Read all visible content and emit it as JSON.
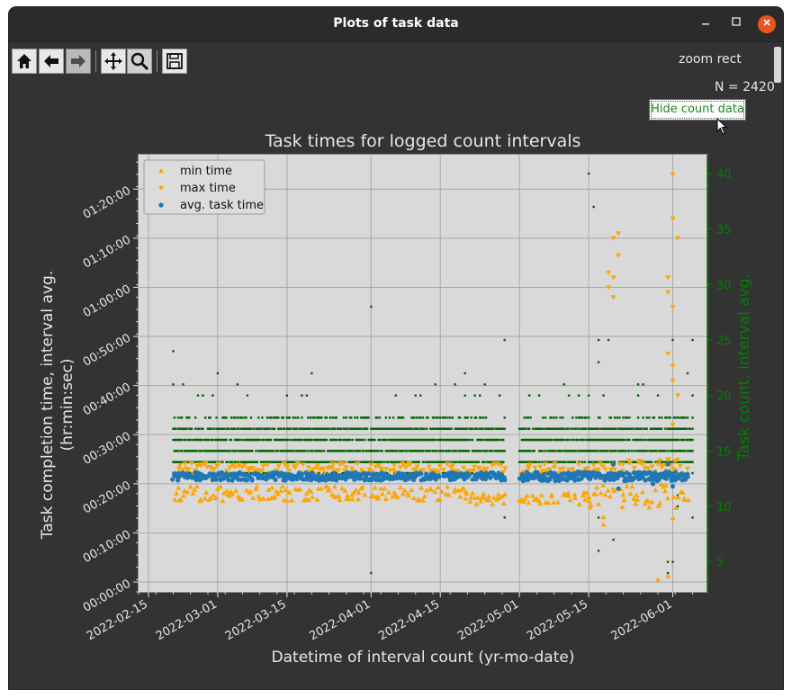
{
  "window": {
    "title": "Plots of task data"
  },
  "toolbar": {
    "mode_label": "zoom rect"
  },
  "info": {
    "count_label": "N = 2420"
  },
  "controls": {
    "hide_count_label": "Hide count data"
  },
  "colors": {
    "min": "#ffa500",
    "max": "#ffa500",
    "avg": "#1f77b4",
    "count": "#006400",
    "count_axis": "#008000",
    "axes_bg": "#d9d9d9",
    "fig_bg": "#333333"
  },
  "chart_data": {
    "type": "scatter",
    "title": "Task times for logged count intervals",
    "xlabel": "Datetime of interval count (yr-mo-date)",
    "ylabel": [
      "Task completion time, interval avg.",
      "(hr:min:sec)"
    ],
    "y2label": "Task count, interval avg.",
    "x_ticks": [
      "2022-02-15",
      "2022-03-01",
      "2022-03-15",
      "2022-04-01",
      "2022-04-15",
      "2022-05-01",
      "2022-05-15",
      "2022-06-01"
    ],
    "y_ticks": [
      "00:00:00",
      "00:10:00",
      "00:20:00",
      "00:30:00",
      "00:40:00",
      "00:50:00",
      "01:00:00",
      "01:10:00",
      "01:20:00"
    ],
    "y2_ticks": [
      "5",
      "10",
      "15",
      "20",
      "25",
      "30",
      "35",
      "40"
    ],
    "xlim": [
      "2022-02-13",
      "2022-06-08"
    ],
    "ylim_minutes": [
      -2,
      87
    ],
    "y2lim": [
      2.3,
      41.7
    ],
    "legend": {
      "placement": "upper-left",
      "entries": [
        "min time",
        "max time",
        "avg. task time"
      ]
    },
    "grid": true,
    "series": [
      {
        "name": "min time",
        "marker": "triangle-up",
        "bands": [
          {
            "from": "2022-02-20",
            "to": "2022-04-20",
            "center": 18,
            "spread": 1.5
          },
          {
            "from": "2022-04-20",
            "to": "2022-05-15",
            "center": 17,
            "spread": 1.2
          },
          {
            "from": "2022-05-15",
            "to": "2022-06-04",
            "center": 17.5,
            "spread": 2.5
          }
        ],
        "points": [
          [
            "2022-05-18",
            11.7
          ],
          [
            "2022-05-29",
            0.5
          ],
          [
            "2022-05-31",
            1.2
          ],
          [
            "2022-06-01",
            13
          ],
          [
            "2022-05-18",
            13.2
          ]
        ]
      },
      {
        "name": "max time",
        "marker": "triangle-down",
        "bands": [
          {
            "from": "2022-02-20",
            "to": "2022-05-22",
            "center": 23,
            "spread": 1.2
          },
          {
            "from": "2022-05-22",
            "to": "2022-06-04",
            "center": 23.5,
            "spread": 1.5
          }
        ],
        "points": [
          [
            "2022-05-19",
            63
          ],
          [
            "2022-05-19",
            60
          ],
          [
            "2022-05-20",
            62
          ],
          [
            "2022-05-20",
            70
          ],
          [
            "2022-05-21",
            71
          ],
          [
            "2022-05-21",
            66.5
          ],
          [
            "2022-05-20",
            58
          ],
          [
            "2022-06-01",
            83
          ],
          [
            "2022-06-01",
            74
          ],
          [
            "2022-06-02",
            70
          ],
          [
            "2022-05-31",
            62
          ],
          [
            "2022-05-31",
            59
          ],
          [
            "2022-06-01",
            56
          ],
          [
            "2022-05-31",
            46.5
          ],
          [
            "2022-06-01",
            44
          ],
          [
            "2022-06-01",
            41
          ],
          [
            "2022-06-02",
            38
          ],
          [
            "2022-06-01",
            32
          ],
          [
            "2022-05-31",
            25
          ]
        ]
      },
      {
        "name": "avg. task time",
        "marker": "circle",
        "bands": [
          {
            "from": "2022-02-20",
            "to": "2022-04-28",
            "center": 21.5,
            "spread": 0.8
          },
          {
            "from": "2022-04-29",
            "to": "2022-06-04",
            "center": 21.5,
            "spread": 0.9
          }
        ],
        "points": [
          [
            "2022-05-20",
            24
          ],
          [
            "2022-05-21",
            19
          ],
          [
            "2022-05-31",
            24
          ],
          [
            "2022-06-01",
            19.5
          ],
          [
            "2022-05-28",
            20
          ]
        ]
      },
      {
        "name": "count",
        "axis": "right",
        "marker": "square",
        "rows": [
          13,
          14,
          15,
          16,
          17,
          18
        ],
        "sparse_rows": [
          20,
          21
        ],
        "points": [
          [
            "2022-02-20",
            24
          ],
          [
            "2022-04-01",
            28
          ],
          [
            "2022-04-01",
            4
          ],
          [
            "2022-04-28",
            25
          ],
          [
            "2022-04-28",
            9
          ],
          [
            "2022-05-15",
            40
          ],
          [
            "2022-05-16",
            37
          ],
          [
            "2022-05-17",
            25
          ],
          [
            "2022-05-17",
            23
          ],
          [
            "2022-05-17",
            9
          ],
          [
            "2022-05-17",
            6
          ],
          [
            "2022-05-20",
            7
          ],
          [
            "2022-05-19",
            25
          ],
          [
            "2022-05-31",
            4
          ],
          [
            "2022-05-31",
            5
          ],
          [
            "2022-06-01",
            5
          ],
          [
            "2022-06-01",
            25
          ],
          [
            "2022-06-02",
            10
          ],
          [
            "2022-06-02",
            11
          ],
          [
            "2022-06-05",
            25
          ],
          [
            "2022-06-05",
            9
          ],
          [
            "2022-06-04",
            22
          ],
          [
            "2022-03-01",
            22
          ],
          [
            "2022-03-20",
            22
          ],
          [
            "2022-04-20",
            22
          ],
          [
            "2022-04-24",
            21
          ],
          [
            "2022-02-22",
            21
          ],
          [
            "2022-03-05",
            21
          ]
        ]
      }
    ]
  }
}
